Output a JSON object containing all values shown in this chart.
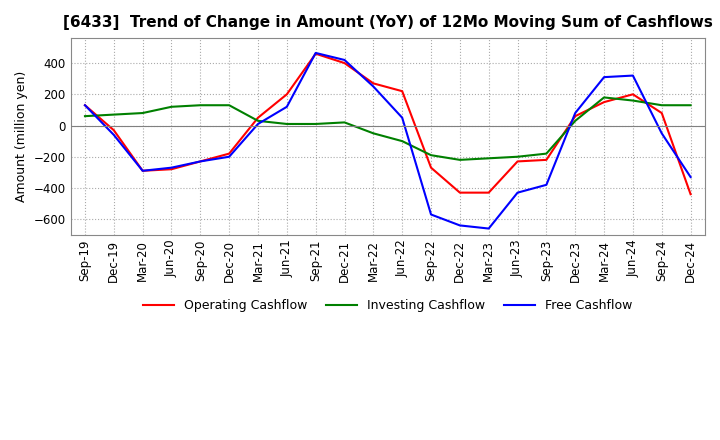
{
  "title": "[6433]  Trend of Change in Amount (YoY) of 12Mo Moving Sum of Cashflows",
  "ylabel": "Amount (million yen)",
  "x_labels": [
    "Sep-19",
    "Dec-19",
    "Mar-20",
    "Jun-20",
    "Sep-20",
    "Dec-20",
    "Mar-21",
    "Jun-21",
    "Sep-21",
    "Dec-21",
    "Mar-22",
    "Jun-22",
    "Sep-22",
    "Dec-22",
    "Mar-23",
    "Jun-23",
    "Sep-23",
    "Dec-23",
    "Mar-24",
    "Jun-24",
    "Sep-24",
    "Dec-24"
  ],
  "operating": [
    130,
    -30,
    -290,
    -280,
    -230,
    -180,
    50,
    200,
    460,
    400,
    270,
    220,
    -270,
    -430,
    -430,
    -230,
    -220,
    60,
    150,
    200,
    80,
    -440
  ],
  "investing": [
    60,
    70,
    80,
    120,
    130,
    130,
    30,
    10,
    10,
    20,
    -50,
    -100,
    -190,
    -220,
    -210,
    -200,
    -180,
    30,
    180,
    160,
    130,
    130
  ],
  "free": [
    130,
    -60,
    -290,
    -270,
    -230,
    -200,
    10,
    120,
    465,
    420,
    250,
    50,
    -570,
    -640,
    -660,
    -430,
    -380,
    80,
    310,
    320,
    -50,
    -330
  ],
  "ylim": [
    -700,
    560
  ],
  "yticks": [
    -600,
    -400,
    -200,
    0,
    200,
    400
  ],
  "operating_color": "#ff0000",
  "investing_color": "#008000",
  "free_color": "#0000ff",
  "bg_color": "#ffffff",
  "grid_color": "#aaaaaa",
  "title_fontsize": 11,
  "legend_fontsize": 9,
  "tick_fontsize": 8.5
}
